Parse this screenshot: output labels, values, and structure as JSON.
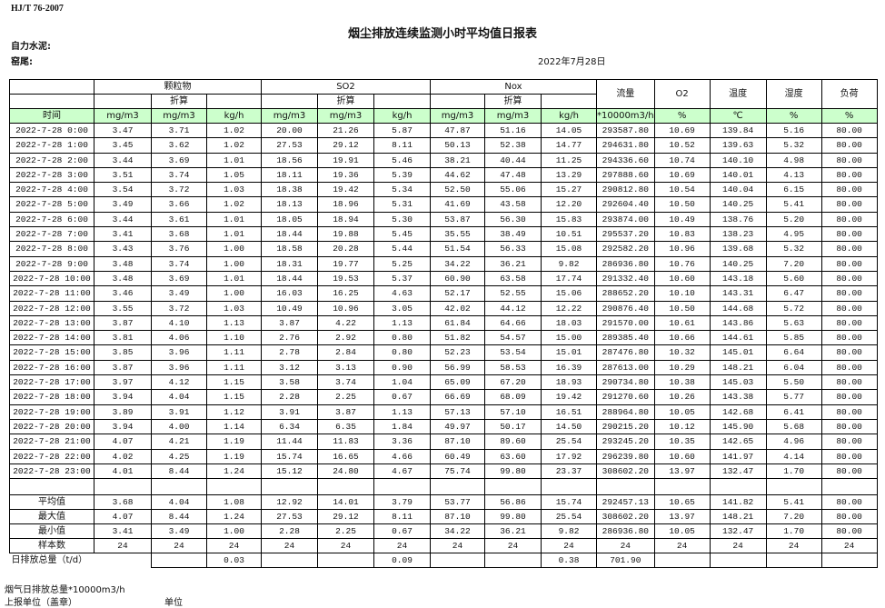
{
  "header": {
    "standard": "HJ/T  76-2007",
    "title": "烟尘排放连续监测小时平均值日报表",
    "company": "自力水泥:",
    "kiln": "窑尾:",
    "date": "2022年7月28日"
  },
  "table": {
    "groups": [
      "颗粒物",
      "SO2",
      "Nox"
    ],
    "converted_label": "折算",
    "single_headers": [
      "流量",
      "O2",
      "温度",
      "湿度",
      "负荷"
    ],
    "units": [
      "时间",
      "mg/m3",
      "mg/m3",
      "kg/h",
      "mg/m3",
      "mg/m3",
      "kg/h",
      "mg/m3",
      "mg/m3",
      "kg/h",
      "*10000m3/h",
      "%",
      "℃",
      "%",
      "%"
    ],
    "rows": [
      [
        "2022-7-28  0:00",
        "3.47",
        "3.71",
        "1.02",
        "20.00",
        "21.26",
        "5.87",
        "47.87",
        "51.16",
        "14.05",
        "293587.80",
        "10.69",
        "139.84",
        "5.16",
        "80.00"
      ],
      [
        "2022-7-28  1:00",
        "3.45",
        "3.62",
        "1.02",
        "27.53",
        "29.12",
        "8.11",
        "50.13",
        "52.38",
        "14.77",
        "294631.80",
        "10.52",
        "139.63",
        "5.32",
        "80.00"
      ],
      [
        "2022-7-28  2:00",
        "3.44",
        "3.69",
        "1.01",
        "18.56",
        "19.91",
        "5.46",
        "38.21",
        "40.44",
        "11.25",
        "294336.60",
        "10.74",
        "140.10",
        "4.98",
        "80.00"
      ],
      [
        "2022-7-28  3:00",
        "3.51",
        "3.74",
        "1.05",
        "18.11",
        "19.36",
        "5.39",
        "44.62",
        "47.48",
        "13.29",
        "297888.60",
        "10.69",
        "140.01",
        "4.13",
        "80.00"
      ],
      [
        "2022-7-28  4:00",
        "3.54",
        "3.72",
        "1.03",
        "18.38",
        "19.42",
        "5.34",
        "52.50",
        "55.06",
        "15.27",
        "290812.80",
        "10.54",
        "140.04",
        "6.15",
        "80.00"
      ],
      [
        "2022-7-28  5:00",
        "3.49",
        "3.66",
        "1.02",
        "18.13",
        "18.96",
        "5.31",
        "41.69",
        "43.58",
        "12.20",
        "292604.40",
        "10.50",
        "140.25",
        "5.41",
        "80.00"
      ],
      [
        "2022-7-28  6:00",
        "3.44",
        "3.61",
        "1.01",
        "18.05",
        "18.94",
        "5.30",
        "53.87",
        "56.30",
        "15.83",
        "293874.00",
        "10.49",
        "138.76",
        "5.20",
        "80.00"
      ],
      [
        "2022-7-28  7:00",
        "3.41",
        "3.68",
        "1.01",
        "18.44",
        "19.88",
        "5.45",
        "35.55",
        "38.49",
        "10.51",
        "295537.20",
        "10.83",
        "138.23",
        "4.95",
        "80.00"
      ],
      [
        "2022-7-28  8:00",
        "3.43",
        "3.76",
        "1.00",
        "18.58",
        "20.28",
        "5.44",
        "51.54",
        "56.33",
        "15.08",
        "292582.20",
        "10.96",
        "139.68",
        "5.32",
        "80.00"
      ],
      [
        "2022-7-28  9:00",
        "3.48",
        "3.74",
        "1.00",
        "18.31",
        "19.77",
        "5.25",
        "34.22",
        "36.21",
        "9.82",
        "286936.80",
        "10.76",
        "140.25",
        "7.20",
        "80.00"
      ],
      [
        "2022-7-28 10:00",
        "3.48",
        "3.69",
        "1.01",
        "18.44",
        "19.53",
        "5.37",
        "60.90",
        "63.58",
        "17.74",
        "291332.40",
        "10.60",
        "143.18",
        "5.60",
        "80.00"
      ],
      [
        "2022-7-28 11:00",
        "3.46",
        "3.49",
        "1.00",
        "16.03",
        "16.25",
        "4.63",
        "52.17",
        "52.55",
        "15.06",
        "288652.20",
        "10.10",
        "143.31",
        "6.47",
        "80.00"
      ],
      [
        "2022-7-28 12:00",
        "3.55",
        "3.72",
        "1.03",
        "10.49",
        "10.96",
        "3.05",
        "42.02",
        "44.12",
        "12.22",
        "290876.40",
        "10.50",
        "144.68",
        "5.72",
        "80.00"
      ],
      [
        "2022-7-28 13:00",
        "3.87",
        "4.10",
        "1.13",
        "3.87",
        "4.22",
        "1.13",
        "61.84",
        "64.66",
        "18.03",
        "291570.00",
        "10.61",
        "143.86",
        "5.63",
        "80.00"
      ],
      [
        "2022-7-28 14:00",
        "3.81",
        "4.06",
        "1.10",
        "2.76",
        "2.92",
        "0.80",
        "51.82",
        "54.57",
        "15.00",
        "289385.40",
        "10.66",
        "144.61",
        "5.85",
        "80.00"
      ],
      [
        "2022-7-28 15:00",
        "3.85",
        "3.96",
        "1.11",
        "2.78",
        "2.84",
        "0.80",
        "52.23",
        "53.54",
        "15.01",
        "287476.80",
        "10.32",
        "145.01",
        "6.64",
        "80.00"
      ],
      [
        "2022-7-28 16:00",
        "3.87",
        "3.96",
        "1.11",
        "3.12",
        "3.13",
        "0.90",
        "56.99",
        "58.53",
        "16.39",
        "287613.00",
        "10.29",
        "148.21",
        "6.04",
        "80.00"
      ],
      [
        "2022-7-28 17:00",
        "3.97",
        "4.12",
        "1.15",
        "3.58",
        "3.74",
        "1.04",
        "65.09",
        "67.20",
        "18.93",
        "290734.80",
        "10.38",
        "145.03",
        "5.50",
        "80.00"
      ],
      [
        "2022-7-28 18:00",
        "3.94",
        "4.04",
        "1.15",
        "2.28",
        "2.25",
        "0.67",
        "66.69",
        "68.09",
        "19.42",
        "291270.60",
        "10.26",
        "143.38",
        "5.77",
        "80.00"
      ],
      [
        "2022-7-28 19:00",
        "3.89",
        "3.91",
        "1.12",
        "3.91",
        "3.87",
        "1.13",
        "57.13",
        "57.10",
        "16.51",
        "288964.80",
        "10.05",
        "142.68",
        "6.41",
        "80.00"
      ],
      [
        "2022-7-28 20:00",
        "3.94",
        "4.00",
        "1.14",
        "6.34",
        "6.35",
        "1.84",
        "49.97",
        "50.17",
        "14.50",
        "290215.20",
        "10.12",
        "145.90",
        "5.68",
        "80.00"
      ],
      [
        "2022-7-28 21:00",
        "4.07",
        "4.21",
        "1.19",
        "11.44",
        "11.83",
        "3.36",
        "87.10",
        "89.60",
        "25.54",
        "293245.20",
        "10.35",
        "142.65",
        "4.96",
        "80.00"
      ],
      [
        "2022-7-28 22:00",
        "4.02",
        "4.25",
        "1.19",
        "15.74",
        "16.65",
        "4.66",
        "60.49",
        "63.60",
        "17.92",
        "296239.80",
        "10.60",
        "141.97",
        "4.14",
        "80.00"
      ],
      [
        "2022-7-28 23:00",
        "4.01",
        "8.44",
        "1.24",
        "15.12",
        "24.80",
        "4.67",
        "75.74",
        "99.80",
        "23.37",
        "308602.20",
        "13.97",
        "132.47",
        "1.70",
        "80.00"
      ]
    ],
    "stats": [
      [
        "平均值",
        "3.68",
        "4.04",
        "1.08",
        "12.92",
        "14.01",
        "3.79",
        "53.77",
        "56.86",
        "15.74",
        "292457.13",
        "10.65",
        "141.82",
        "5.41",
        "80.00"
      ],
      [
        "最大值",
        "4.07",
        "8.44",
        "1.24",
        "27.53",
        "29.12",
        "8.11",
        "87.10",
        "99.80",
        "25.54",
        "308602.20",
        "13.97",
        "148.21",
        "7.20",
        "80.00"
      ],
      [
        "最小值",
        "3.41",
        "3.49",
        "1.00",
        "2.28",
        "2.25",
        "0.67",
        "34.22",
        "36.21",
        "9.82",
        "286936.80",
        "10.05",
        "132.47",
        "1.70",
        "80.00"
      ],
      [
        "样本数",
        "24",
        "24",
        "24",
        "24",
        "24",
        "24",
        "24",
        "24",
        "24",
        "24",
        "24",
        "24",
        "24",
        "24"
      ]
    ],
    "daily_total": [
      "日排放总量（t/d）",
      "",
      "0.03",
      "",
      "",
      "0.09",
      "",
      "",
      "0.38",
      "701.90",
      "",
      "",
      "",
      ""
    ]
  },
  "footer": {
    "flue_gas_total": "烟气日排放总量*10000m3/h",
    "reporting_unit": "上报单位（盖章）",
    "unit": "单位"
  },
  "colors": {
    "unit_row_bg": "#ccffcc"
  }
}
